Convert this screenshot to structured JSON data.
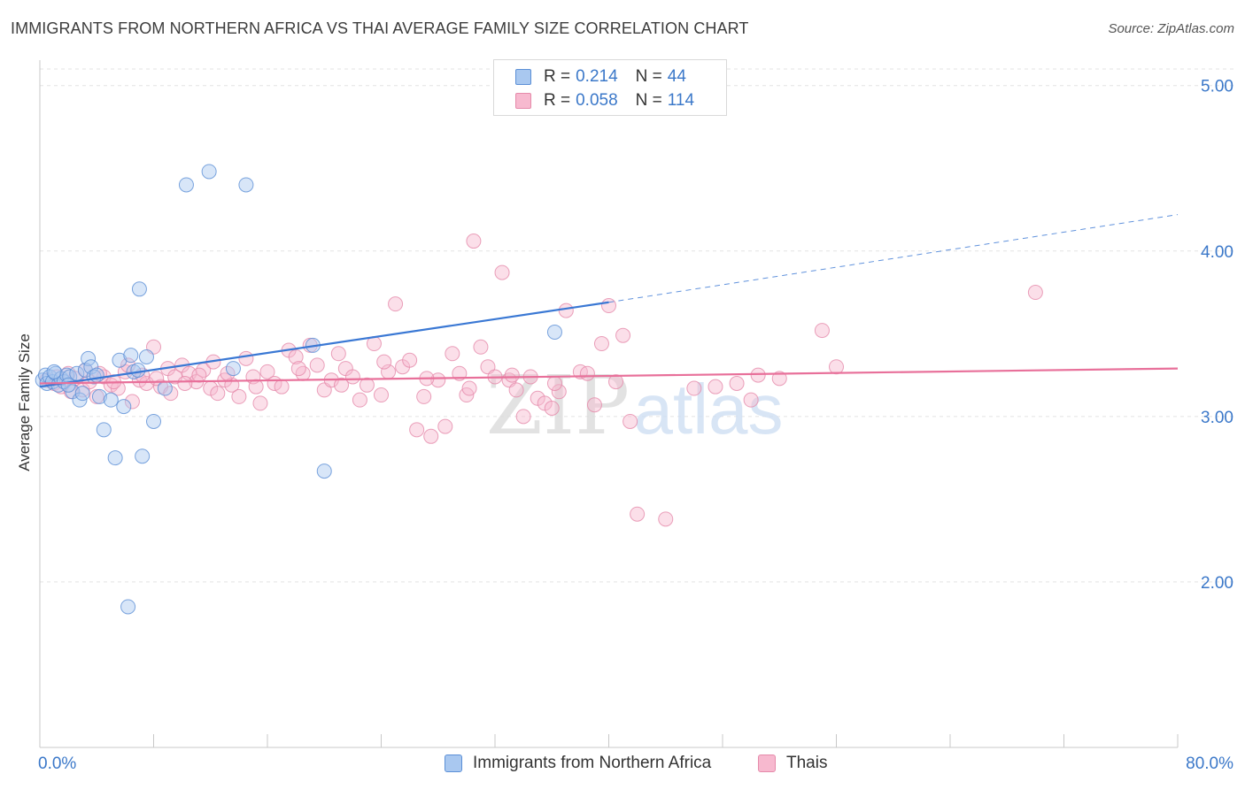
{
  "title": "IMMIGRANTS FROM NORTHERN AFRICA VS THAI AVERAGE FAMILY SIZE CORRELATION CHART",
  "source": "Source: ZipAtlas.com",
  "watermark": {
    "zip": "ZIP",
    "atlas": "atlas"
  },
  "legend": {
    "series1": {
      "r_label": "R =",
      "r_value": "0.214",
      "n_label": "N =",
      "n_value": "44"
    },
    "series2": {
      "r_label": "R =",
      "r_value": "0.058",
      "n_label": "N =",
      "n_value": "114"
    }
  },
  "colors": {
    "blue_fill": "#a9c8f0",
    "blue_stroke": "#5b8fd6",
    "blue_line": "#3a78d4",
    "pink_fill": "#f7b9cf",
    "pink_stroke": "#e58aaa",
    "pink_line": "#e8709a",
    "tick_label": "#3b78c9",
    "grid": "#e3e3e3"
  },
  "chart_data": {
    "type": "scatter",
    "title": "IMMIGRANTS FROM NORTHERN AFRICA VS THAI AVERAGE FAMILY SIZE CORRELATION CHART",
    "xlabel": "",
    "ylabel": "Average Family Size",
    "xlim": [
      0,
      80
    ],
    "ylim": [
      1.0,
      5.1
    ],
    "x_tick_labels": [
      "0.0%",
      "80.0%"
    ],
    "y_ticks": [
      2.0,
      3.0,
      4.0,
      5.0
    ],
    "y_tick_labels": [
      "2.00",
      "3.00",
      "4.00",
      "5.00"
    ],
    "grid": true,
    "legend_position": "top-center",
    "series": [
      {
        "name": "Immigrants from Northern Africa",
        "color": "#5b8fd6",
        "trend": {
          "x": [
            0,
            40,
            80
          ],
          "y": [
            3.18,
            3.69,
            4.22
          ],
          "solid_until": 40
        },
        "points": [
          [
            0.2,
            3.22
          ],
          [
            0.4,
            3.25
          ],
          [
            0.5,
            3.2
          ],
          [
            0.7,
            3.24
          ],
          [
            0.9,
            3.21
          ],
          [
            1.1,
            3.26
          ],
          [
            1.3,
            3.19
          ],
          [
            1.5,
            3.23
          ],
          [
            1.7,
            3.21
          ],
          [
            1.9,
            3.25
          ],
          [
            2.1,
            3.24
          ],
          [
            2.3,
            3.15
          ],
          [
            2.6,
            3.26
          ],
          [
            2.8,
            3.1
          ],
          [
            3.0,
            3.14
          ],
          [
            3.2,
            3.28
          ],
          [
            3.4,
            3.35
          ],
          [
            3.6,
            3.3
          ],
          [
            3.8,
            3.24
          ],
          [
            4.0,
            3.25
          ],
          [
            4.2,
            3.12
          ],
          [
            4.5,
            2.92
          ],
          [
            5.0,
            3.1
          ],
          [
            5.3,
            2.75
          ],
          [
            5.6,
            3.34
          ],
          [
            5.9,
            3.06
          ],
          [
            6.2,
            1.85
          ],
          [
            6.4,
            3.37
          ],
          [
            6.6,
            3.27
          ],
          [
            6.9,
            3.28
          ],
          [
            7.0,
            3.77
          ],
          [
            7.2,
            2.76
          ],
          [
            7.5,
            3.36
          ],
          [
            8.0,
            2.97
          ],
          [
            8.8,
            3.17
          ],
          [
            10.3,
            4.4
          ],
          [
            11.9,
            4.48
          ],
          [
            13.6,
            3.29
          ],
          [
            14.5,
            4.4
          ],
          [
            19.2,
            3.43
          ],
          [
            20.0,
            2.67
          ],
          [
            36.2,
            3.51
          ],
          [
            1.0,
            3.27
          ],
          [
            2.0,
            3.19
          ]
        ]
      },
      {
        "name": "Thais",
        "color": "#e58aaa",
        "trend": {
          "x": [
            0,
            80
          ],
          "y": [
            3.2,
            3.29
          ]
        },
        "points": [
          [
            0.5,
            3.22
          ],
          [
            1.0,
            3.2
          ],
          [
            1.5,
            3.18
          ],
          [
            2.0,
            3.26
          ],
          [
            2.5,
            3.23
          ],
          [
            3.0,
            3.16
          ],
          [
            3.5,
            3.21
          ],
          [
            4.0,
            3.12
          ],
          [
            4.5,
            3.24
          ],
          [
            5.0,
            3.19
          ],
          [
            5.5,
            3.17
          ],
          [
            6.0,
            3.27
          ],
          [
            6.5,
            3.09
          ],
          [
            7.0,
            3.22
          ],
          [
            7.5,
            3.2
          ],
          [
            8.0,
            3.42
          ],
          [
            8.5,
            3.18
          ],
          [
            9.0,
            3.29
          ],
          [
            9.5,
            3.24
          ],
          [
            10.0,
            3.31
          ],
          [
            10.5,
            3.26
          ],
          [
            11.0,
            3.21
          ],
          [
            11.5,
            3.28
          ],
          [
            12.0,
            3.17
          ],
          [
            12.5,
            3.14
          ],
          [
            13.0,
            3.22
          ],
          [
            13.5,
            3.19
          ],
          [
            14.0,
            3.12
          ],
          [
            14.5,
            3.35
          ],
          [
            15.0,
            3.24
          ],
          [
            15.5,
            3.08
          ],
          [
            16.0,
            3.27
          ],
          [
            16.5,
            3.2
          ],
          [
            17.0,
            3.18
          ],
          [
            17.5,
            3.4
          ],
          [
            18.0,
            3.36
          ],
          [
            18.5,
            3.26
          ],
          [
            19.0,
            3.43
          ],
          [
            19.5,
            3.31
          ],
          [
            20.0,
            3.16
          ],
          [
            20.5,
            3.22
          ],
          [
            21.0,
            3.38
          ],
          [
            21.5,
            3.29
          ],
          [
            22.0,
            3.24
          ],
          [
            22.5,
            3.1
          ],
          [
            23.0,
            3.19
          ],
          [
            23.5,
            3.44
          ],
          [
            24.0,
            3.13
          ],
          [
            24.5,
            3.27
          ],
          [
            25.0,
            3.68
          ],
          [
            25.5,
            3.3
          ],
          [
            26.0,
            3.34
          ],
          [
            26.5,
            2.92
          ],
          [
            27.0,
            3.12
          ],
          [
            27.5,
            2.88
          ],
          [
            28.0,
            3.22
          ],
          [
            28.5,
            2.94
          ],
          [
            29.0,
            3.38
          ],
          [
            29.5,
            3.26
          ],
          [
            30.0,
            3.13
          ],
          [
            30.5,
            4.06
          ],
          [
            31.0,
            3.42
          ],
          [
            31.5,
            3.3
          ],
          [
            32.0,
            3.24
          ],
          [
            32.5,
            3.87
          ],
          [
            33.0,
            3.22
          ],
          [
            33.5,
            3.16
          ],
          [
            34.0,
            3.0
          ],
          [
            34.5,
            3.24
          ],
          [
            35.0,
            3.11
          ],
          [
            35.5,
            3.08
          ],
          [
            36.0,
            3.05
          ],
          [
            36.5,
            3.15
          ],
          [
            37.0,
            3.64
          ],
          [
            38.0,
            3.27
          ],
          [
            38.5,
            3.26
          ],
          [
            39.0,
            3.07
          ],
          [
            39.5,
            3.44
          ],
          [
            40.0,
            3.67
          ],
          [
            40.5,
            3.21
          ],
          [
            41.0,
            3.49
          ],
          [
            41.5,
            2.97
          ],
          [
            42.0,
            2.41
          ],
          [
            44.0,
            2.38
          ],
          [
            46.0,
            3.17
          ],
          [
            47.5,
            3.18
          ],
          [
            49.0,
            3.2
          ],
          [
            50.0,
            3.1
          ],
          [
            50.5,
            3.25
          ],
          [
            52.0,
            3.23
          ],
          [
            55.0,
            3.52
          ],
          [
            56.0,
            3.3
          ],
          [
            70.0,
            3.75
          ],
          [
            3.2,
            3.28
          ],
          [
            6.2,
            3.31
          ],
          [
            9.2,
            3.14
          ],
          [
            12.2,
            3.33
          ],
          [
            15.2,
            3.18
          ],
          [
            18.2,
            3.29
          ],
          [
            21.2,
            3.19
          ],
          [
            24.2,
            3.33
          ],
          [
            27.2,
            3.23
          ],
          [
            30.2,
            3.17
          ],
          [
            33.2,
            3.25
          ],
          [
            36.2,
            3.2
          ],
          [
            1.2,
            3.24
          ],
          [
            2.2,
            3.15
          ],
          [
            4.2,
            3.26
          ],
          [
            5.2,
            3.21
          ],
          [
            7.2,
            3.25
          ],
          [
            8.2,
            3.23
          ],
          [
            10.2,
            3.2
          ],
          [
            11.2,
            3.25
          ],
          [
            13.2,
            3.26
          ]
        ]
      }
    ]
  },
  "bottom_legend": {
    "item1": "Immigrants from Northern Africa",
    "item2": "Thais"
  }
}
